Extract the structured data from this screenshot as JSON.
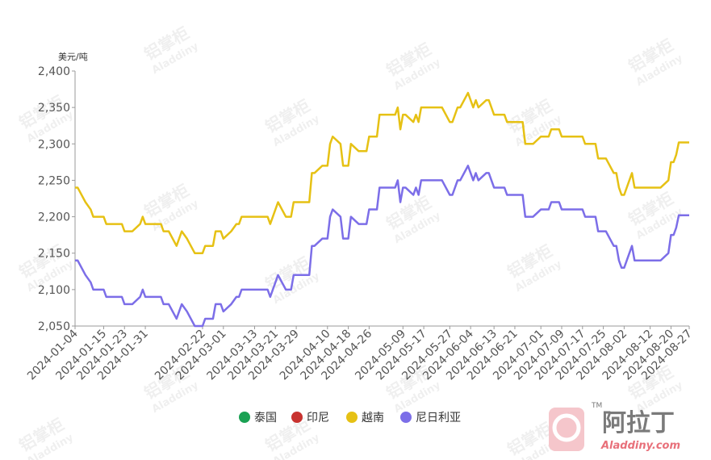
{
  "chart_data": {
    "type": "line",
    "unit_label": "美元/吨",
    "ylim": [
      2050,
      2400
    ],
    "yticks": [
      2050,
      2100,
      2150,
      2200,
      2250,
      2300,
      2350,
      2400
    ],
    "ytick_labels": [
      "2,050",
      "2,100",
      "2,150",
      "2,200",
      "2,250",
      "2,300",
      "2,350",
      "2,400"
    ],
    "xlim": [
      "2024-01-04",
      "2024-08-27"
    ],
    "xtick_labels": [
      "2024-01-04",
      "2024-01-15",
      "2024-01-23",
      "2024-01-31",
      "2024-02-22",
      "2024-03-01",
      "2024-03-13",
      "2024-03-21",
      "2024-03-29",
      "2024-04-10",
      "2024-04-18",
      "2024-04-26",
      "2024-05-09",
      "2024-05-17",
      "2024-05-27",
      "2024-06-04",
      "2024-06-13",
      "2024-06-21",
      "2024-07-01",
      "2024-07-09",
      "2024-07-17",
      "2024-07-25",
      "2024-08-02",
      "2024-08-12",
      "2024-08-20",
      "2024-08-27"
    ],
    "grid": false,
    "legend_position": "bottom",
    "series": [
      {
        "name": "泰国",
        "color": "#1aa153",
        "values": []
      },
      {
        "name": "印尼",
        "color": "#c8322f",
        "values": []
      },
      {
        "name": "越南",
        "color": "#e6c114",
        "values": [
          [
            "2024-01-04",
            2240
          ],
          [
            "2024-01-05",
            2240
          ],
          [
            "2024-01-08",
            2220
          ],
          [
            "2024-01-10",
            2210
          ],
          [
            "2024-01-11",
            2200
          ],
          [
            "2024-01-15",
            2200
          ],
          [
            "2024-01-16",
            2190
          ],
          [
            "2024-01-22",
            2190
          ],
          [
            "2024-01-23",
            2180
          ],
          [
            "2024-01-26",
            2180
          ],
          [
            "2024-01-29",
            2190
          ],
          [
            "2024-01-30",
            2200
          ],
          [
            "2024-01-31",
            2190
          ],
          [
            "2024-02-06",
            2190
          ],
          [
            "2024-02-07",
            2180
          ],
          [
            "2024-02-09",
            2180
          ],
          [
            "2024-02-12",
            2160
          ],
          [
            "2024-02-14",
            2180
          ],
          [
            "2024-02-16",
            2170
          ],
          [
            "2024-02-19",
            2150
          ],
          [
            "2024-02-22",
            2150
          ],
          [
            "2024-02-23",
            2160
          ],
          [
            "2024-02-26",
            2160
          ],
          [
            "2024-02-27",
            2180
          ],
          [
            "2024-02-29",
            2180
          ],
          [
            "2024-03-01",
            2170
          ],
          [
            "2024-03-04",
            2180
          ],
          [
            "2024-03-06",
            2190
          ],
          [
            "2024-03-07",
            2190
          ],
          [
            "2024-03-08",
            2200
          ],
          [
            "2024-03-18",
            2200
          ],
          [
            "2024-03-19",
            2190
          ],
          [
            "2024-03-20",
            2200
          ],
          [
            "2024-03-22",
            2220
          ],
          [
            "2024-03-25",
            2200
          ],
          [
            "2024-03-27",
            2200
          ],
          [
            "2024-03-28",
            2220
          ],
          [
            "2024-04-03",
            2220
          ],
          [
            "2024-04-04",
            2260
          ],
          [
            "2024-04-05",
            2260
          ],
          [
            "2024-04-08",
            2270
          ],
          [
            "2024-04-10",
            2270
          ],
          [
            "2024-04-11",
            2300
          ],
          [
            "2024-04-12",
            2310
          ],
          [
            "2024-04-15",
            2300
          ],
          [
            "2024-04-16",
            2270
          ],
          [
            "2024-04-18",
            2270
          ],
          [
            "2024-04-19",
            2300
          ],
          [
            "2024-04-22",
            2290
          ],
          [
            "2024-04-25",
            2290
          ],
          [
            "2024-04-26",
            2310
          ],
          [
            "2024-04-29",
            2310
          ],
          [
            "2024-04-30",
            2340
          ],
          [
            "2024-05-06",
            2340
          ],
          [
            "2024-05-07",
            2350
          ],
          [
            "2024-05-08",
            2320
          ],
          [
            "2024-05-09",
            2340
          ],
          [
            "2024-05-10",
            2340
          ],
          [
            "2024-05-13",
            2330
          ],
          [
            "2024-05-14",
            2340
          ],
          [
            "2024-05-15",
            2330
          ],
          [
            "2024-05-16",
            2350
          ],
          [
            "2024-05-24",
            2350
          ],
          [
            "2024-05-27",
            2330
          ],
          [
            "2024-05-28",
            2330
          ],
          [
            "2024-05-29",
            2340
          ],
          [
            "2024-05-30",
            2350
          ],
          [
            "2024-05-31",
            2350
          ],
          [
            "2024-06-03",
            2370
          ],
          [
            "2024-06-04",
            2360
          ],
          [
            "2024-06-05",
            2350
          ],
          [
            "2024-06-06",
            2360
          ],
          [
            "2024-06-07",
            2350
          ],
          [
            "2024-06-10",
            2360
          ],
          [
            "2024-06-11",
            2360
          ],
          [
            "2024-06-12",
            2350
          ],
          [
            "2024-06-13",
            2340
          ],
          [
            "2024-06-17",
            2340
          ],
          [
            "2024-06-18",
            2330
          ],
          [
            "2024-06-24",
            2330
          ],
          [
            "2024-06-25",
            2300
          ],
          [
            "2024-06-28",
            2300
          ],
          [
            "2024-07-01",
            2310
          ],
          [
            "2024-07-04",
            2310
          ],
          [
            "2024-07-05",
            2320
          ],
          [
            "2024-07-08",
            2320
          ],
          [
            "2024-07-09",
            2310
          ],
          [
            "2024-07-17",
            2310
          ],
          [
            "2024-07-18",
            2300
          ],
          [
            "2024-07-22",
            2300
          ],
          [
            "2024-07-23",
            2280
          ],
          [
            "2024-07-26",
            2280
          ],
          [
            "2024-07-29",
            2260
          ],
          [
            "2024-07-30",
            2260
          ],
          [
            "2024-07-31",
            2240
          ],
          [
            "2024-08-01",
            2230
          ],
          [
            "2024-08-02",
            2230
          ],
          [
            "2024-08-05",
            2260
          ],
          [
            "2024-08-06",
            2240
          ],
          [
            "2024-08-16",
            2240
          ],
          [
            "2024-08-19",
            2250
          ],
          [
            "2024-08-20",
            2275
          ],
          [
            "2024-08-21",
            2275
          ],
          [
            "2024-08-22",
            2285
          ],
          [
            "2024-08-23",
            2302
          ],
          [
            "2024-08-27",
            2302
          ]
        ]
      },
      {
        "name": "尼日利亚",
        "color": "#7c6ee8",
        "values": [
          [
            "2024-01-04",
            2140
          ],
          [
            "2024-01-05",
            2140
          ],
          [
            "2024-01-08",
            2120
          ],
          [
            "2024-01-10",
            2110
          ],
          [
            "2024-01-11",
            2100
          ],
          [
            "2024-01-15",
            2100
          ],
          [
            "2024-01-16",
            2090
          ],
          [
            "2024-01-22",
            2090
          ],
          [
            "2024-01-23",
            2080
          ],
          [
            "2024-01-26",
            2080
          ],
          [
            "2024-01-29",
            2090
          ],
          [
            "2024-01-30",
            2100
          ],
          [
            "2024-01-31",
            2090
          ],
          [
            "2024-02-06",
            2090
          ],
          [
            "2024-02-07",
            2080
          ],
          [
            "2024-02-09",
            2080
          ],
          [
            "2024-02-12",
            2060
          ],
          [
            "2024-02-14",
            2080
          ],
          [
            "2024-02-16",
            2070
          ],
          [
            "2024-02-19",
            2050
          ],
          [
            "2024-02-22",
            2050
          ],
          [
            "2024-02-23",
            2060
          ],
          [
            "2024-02-26",
            2060
          ],
          [
            "2024-02-27",
            2080
          ],
          [
            "2024-02-29",
            2080
          ],
          [
            "2024-03-01",
            2070
          ],
          [
            "2024-03-04",
            2080
          ],
          [
            "2024-03-06",
            2090
          ],
          [
            "2024-03-07",
            2090
          ],
          [
            "2024-03-08",
            2100
          ],
          [
            "2024-03-18",
            2100
          ],
          [
            "2024-03-19",
            2090
          ],
          [
            "2024-03-20",
            2100
          ],
          [
            "2024-03-22",
            2120
          ],
          [
            "2024-03-25",
            2100
          ],
          [
            "2024-03-27",
            2100
          ],
          [
            "2024-03-28",
            2120
          ],
          [
            "2024-04-03",
            2120
          ],
          [
            "2024-04-04",
            2160
          ],
          [
            "2024-04-05",
            2160
          ],
          [
            "2024-04-08",
            2170
          ],
          [
            "2024-04-10",
            2170
          ],
          [
            "2024-04-11",
            2200
          ],
          [
            "2024-04-12",
            2210
          ],
          [
            "2024-04-15",
            2200
          ],
          [
            "2024-04-16",
            2170
          ],
          [
            "2024-04-18",
            2170
          ],
          [
            "2024-04-19",
            2200
          ],
          [
            "2024-04-22",
            2190
          ],
          [
            "2024-04-25",
            2190
          ],
          [
            "2024-04-26",
            2210
          ],
          [
            "2024-04-29",
            2210
          ],
          [
            "2024-04-30",
            2240
          ],
          [
            "2024-05-06",
            2240
          ],
          [
            "2024-05-07",
            2250
          ],
          [
            "2024-05-08",
            2220
          ],
          [
            "2024-05-09",
            2240
          ],
          [
            "2024-05-10",
            2240
          ],
          [
            "2024-05-13",
            2230
          ],
          [
            "2024-05-14",
            2240
          ],
          [
            "2024-05-15",
            2230
          ],
          [
            "2024-05-16",
            2250
          ],
          [
            "2024-05-24",
            2250
          ],
          [
            "2024-05-27",
            2230
          ],
          [
            "2024-05-28",
            2230
          ],
          [
            "2024-05-29",
            2240
          ],
          [
            "2024-05-30",
            2250
          ],
          [
            "2024-05-31",
            2250
          ],
          [
            "2024-06-03",
            2270
          ],
          [
            "2024-06-04",
            2260
          ],
          [
            "2024-06-05",
            2250
          ],
          [
            "2024-06-06",
            2260
          ],
          [
            "2024-06-07",
            2250
          ],
          [
            "2024-06-10",
            2260
          ],
          [
            "2024-06-11",
            2260
          ],
          [
            "2024-06-12",
            2250
          ],
          [
            "2024-06-13",
            2240
          ],
          [
            "2024-06-17",
            2240
          ],
          [
            "2024-06-18",
            2230
          ],
          [
            "2024-06-24",
            2230
          ],
          [
            "2024-06-25",
            2200
          ],
          [
            "2024-06-28",
            2200
          ],
          [
            "2024-07-01",
            2210
          ],
          [
            "2024-07-04",
            2210
          ],
          [
            "2024-07-05",
            2220
          ],
          [
            "2024-07-08",
            2220
          ],
          [
            "2024-07-09",
            2210
          ],
          [
            "2024-07-17",
            2210
          ],
          [
            "2024-07-18",
            2200
          ],
          [
            "2024-07-22",
            2200
          ],
          [
            "2024-07-23",
            2180
          ],
          [
            "2024-07-26",
            2180
          ],
          [
            "2024-07-29",
            2160
          ],
          [
            "2024-07-30",
            2160
          ],
          [
            "2024-07-31",
            2140
          ],
          [
            "2024-08-01",
            2130
          ],
          [
            "2024-08-02",
            2130
          ],
          [
            "2024-08-05",
            2160
          ],
          [
            "2024-08-06",
            2140
          ],
          [
            "2024-08-16",
            2140
          ],
          [
            "2024-08-19",
            2150
          ],
          [
            "2024-08-20",
            2175
          ],
          [
            "2024-08-21",
            2175
          ],
          [
            "2024-08-22",
            2185
          ],
          [
            "2024-08-23",
            2202
          ],
          [
            "2024-08-27",
            2202
          ]
        ]
      }
    ]
  },
  "watermark": {
    "cn": "铝掌柜",
    "en": "Aladdiny"
  },
  "logo": {
    "cn": "阿拉丁",
    "en": "Aladdiny.com",
    "tm": "TM"
  }
}
